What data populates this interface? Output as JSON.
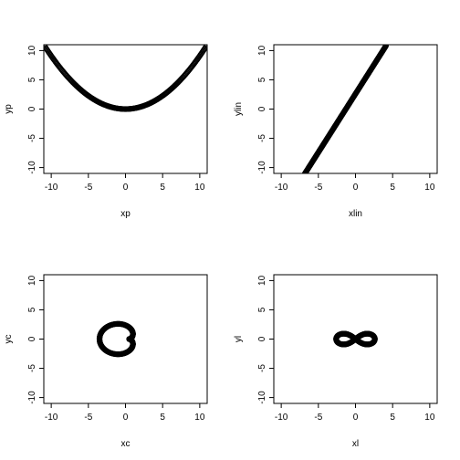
{
  "chart_data": [
    {
      "type": "scatter",
      "xlabel": "xp",
      "ylabel": "yp",
      "xlim": [
        -11,
        11
      ],
      "ylim": [
        -11,
        11
      ],
      "xticks": [
        "-10",
        "-5",
        "0",
        "5",
        "10"
      ],
      "yticks": [
        "-10",
        "-5",
        "0",
        "5",
        "10"
      ],
      "curve": "parabola",
      "formula": "y = x^2 / 11",
      "x_range": [
        -11,
        11
      ],
      "n_points": 220,
      "marker": "open-circle"
    },
    {
      "type": "scatter",
      "xlabel": "xlin",
      "ylabel": "ylin",
      "xlim": [
        -11,
        11
      ],
      "ylim": [
        -11,
        11
      ],
      "xticks": [
        "-10",
        "-5",
        "0",
        "5",
        "10"
      ],
      "yticks": [
        "-10",
        "-5",
        "0",
        "5",
        "10"
      ],
      "curve": "line",
      "formula": "y = 2x + 2.6",
      "x_range": [
        -6.8,
        4.1
      ],
      "n_points": 220,
      "marker": "open-circle"
    },
    {
      "type": "scatter",
      "xlabel": "xc",
      "ylabel": "yc",
      "xlim": [
        -11,
        11
      ],
      "ylim": [
        -11,
        11
      ],
      "xticks": [
        "-10",
        "-5",
        "0",
        "5",
        "10"
      ],
      "yticks": [
        "-10",
        "-5",
        "0",
        "5",
        "10"
      ],
      "curve": "cardioid",
      "formula": "r = 2a(1 - cos t), a = 1",
      "n_points": 300,
      "marker": "open-circle"
    },
    {
      "type": "scatter",
      "xlabel": "xl",
      "ylabel": "yl",
      "xlim": [
        -11,
        11
      ],
      "ylim": [
        -11,
        11
      ],
      "xticks": [
        "-10",
        "-5",
        "0",
        "5",
        "10"
      ],
      "yticks": [
        "-10",
        "-5",
        "0",
        "5",
        "10"
      ],
      "curve": "lemniscate",
      "formula": "x = a cos t / (1 + sin^2 t), y = a sin t cos t / (1 + sin^2 t), a = 2.6",
      "n_points": 300,
      "marker": "open-circle"
    }
  ]
}
